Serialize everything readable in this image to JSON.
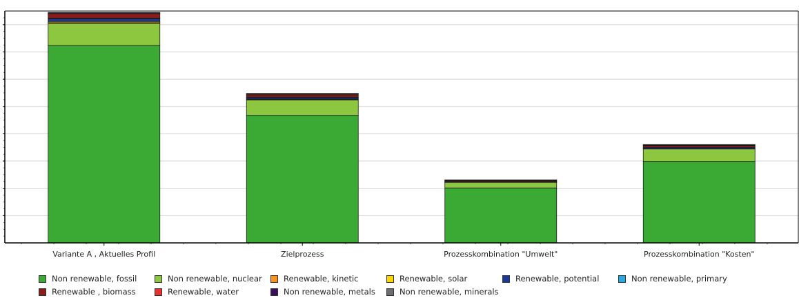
{
  "chart_data": {
    "type": "bar",
    "stacked": true,
    "title": "",
    "xlabel": "",
    "ylabel": "",
    "grid": true,
    "legend_position": "bottom",
    "categories": [
      "Variante A , Aktuelles Profil",
      "Zielprozess",
      "Prozesskombination \"Umwelt\"",
      "Prozesskombination \"Kosten\""
    ],
    "series": [
      {
        "name": "Non renewable, fossil",
        "color": "#3aaa35",
        "values": [
          71.5,
          46.2,
          19.9,
          29.5
        ]
      },
      {
        "name": "Non renewable, nuclear",
        "color": "#8dc63f",
        "values": [
          8.0,
          5.6,
          2.0,
          4.5
        ]
      },
      {
        "name": "Renewable, kinetic",
        "color": "#f7941d",
        "values": [
          0.3,
          0.2,
          0.05,
          0.1
        ]
      },
      {
        "name": "Renewable, solar",
        "color": "#ffd700",
        "values": [
          0.4,
          0.2,
          0.05,
          0.1
        ]
      },
      {
        "name": "Renewable, potential",
        "color": "#1b3a9a",
        "values": [
          1.0,
          0.5,
          0.2,
          0.4
        ]
      },
      {
        "name": "Non renewable, primary",
        "color": "#29abe2",
        "values": [
          0.2,
          0.1,
          0.05,
          0.05
        ]
      },
      {
        "name": "Renewable , biomass",
        "color": "#8b1a1a",
        "values": [
          1.3,
          0.8,
          0.3,
          0.6
        ]
      },
      {
        "name": "Renewable, water",
        "color": "#e8312a",
        "values": [
          0.4,
          0.3,
          0.15,
          0.2
        ]
      },
      {
        "name": "Non renewable, metals",
        "color": "#3b0d5e",
        "values": [
          0.3,
          0.2,
          0.1,
          0.15
        ]
      },
      {
        "name": "Non renewable, minerals",
        "color": "#6d6e71",
        "values": [
          0.1,
          0.05,
          0.02,
          0.04
        ]
      }
    ],
    "ylim": [
      0,
      84
    ]
  }
}
